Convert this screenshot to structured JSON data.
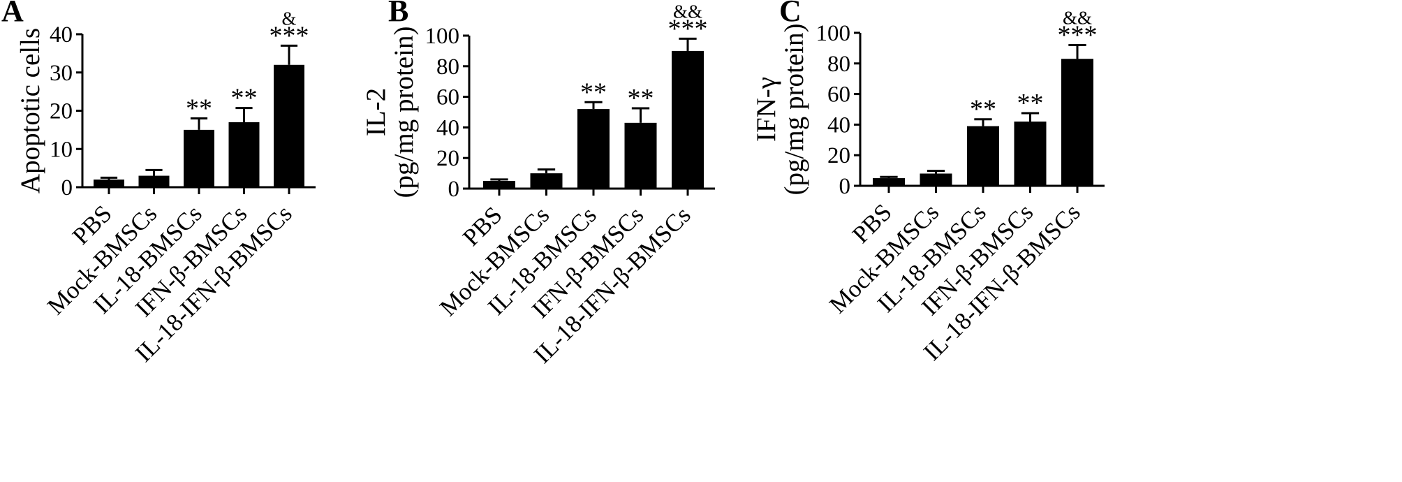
{
  "chart_data": [
    {
      "type": "bar",
      "panel_label": "A",
      "categories": [
        "PBS",
        "Mock-BMSCs",
        "IL-18-BMSCs",
        "IFN-β-BMSCs",
        "IL-18-IFN-β-BMSCs"
      ],
      "values": [
        2,
        3,
        15,
        17,
        32
      ],
      "errors": [
        0.5,
        1.5,
        3,
        3.7,
        5
      ],
      "significance": [
        "",
        "",
        "**",
        "**",
        "***"
      ],
      "secondary_significance": [
        "",
        "",
        "",
        "",
        "&"
      ],
      "ylabel_lines": [
        "Apoptotic cells"
      ],
      "yticks": [
        0,
        10,
        20,
        30,
        40
      ],
      "ylim": [
        0,
        40
      ],
      "color": "#000000",
      "grid": false
    },
    {
      "type": "bar",
      "panel_label": "B",
      "categories": [
        "PBS",
        "Mock-BMSCs",
        "IL-18-BMSCs",
        "IFN-β-BMSCs",
        "IL-18-IFN-β-BMSCs"
      ],
      "values": [
        5,
        10,
        52,
        43,
        90
      ],
      "errors": [
        1,
        2.5,
        4.5,
        9.5,
        8
      ],
      "significance": [
        "",
        "",
        "**",
        "**",
        "***"
      ],
      "secondary_significance": [
        "",
        "",
        "",
        "",
        "&&"
      ],
      "ylabel_lines": [
        "IL-2",
        "(pg/mg protein)"
      ],
      "yticks": [
        0,
        20,
        40,
        60,
        80,
        100
      ],
      "ylim": [
        0,
        100
      ],
      "color": "#000000",
      "grid": false
    },
    {
      "type": "bar",
      "panel_label": "C",
      "categories": [
        "PBS",
        "Mock-BMSCs",
        "IL-18-BMSCs",
        "IFN-β-BMSCs",
        "IL-18-IFN-β-BMSCs"
      ],
      "values": [
        5,
        8,
        39,
        42,
        83
      ],
      "errors": [
        0.8,
        1.8,
        4.5,
        5.5,
        9
      ],
      "significance": [
        "",
        "",
        "**",
        "**",
        "***"
      ],
      "secondary_significance": [
        "",
        "",
        "",
        "",
        "&&"
      ],
      "ylabel_lines": [
        "IFN-γ",
        "(pg/mg protein)"
      ],
      "yticks": [
        0,
        20,
        40,
        60,
        80,
        100
      ],
      "ylim": [
        0,
        100
      ],
      "color": "#000000",
      "grid": false
    }
  ]
}
